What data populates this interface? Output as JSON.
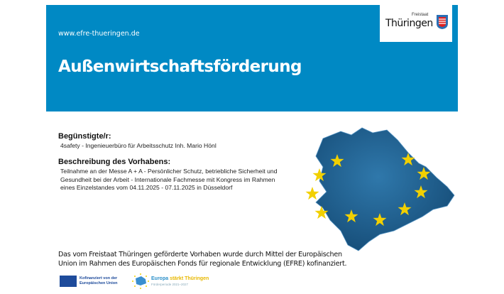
{
  "header": {
    "url": "www.efre-thueringen.de",
    "title": "Außenwirtschaftsförderung",
    "logo": {
      "line1": "Freistaat",
      "line2": "Thüringen"
    }
  },
  "beneficiary": {
    "label": "Begünstigte/r:",
    "value": "4safety - Ingenieuerbüro für Arbeitsschutz Inh. Mario Hönl"
  },
  "description": {
    "label": "Beschreibung des Vorhabens:",
    "lines": [
      "Teilnahme an der Messe A + A - Persönlicher Schutz, betriebliche Sicherheit und",
      "Gesundheit bei der Arbeit - Internationale Fachmesse mit Kongress im Rahmen",
      "eines Einzelstandes vom 04.11.2025 - 07.11.2025 in Düsseldorf"
    ]
  },
  "footer": {
    "lines": [
      "Das vom Freistaat Thüringen geförderte Vorhaben wurde durch Mittel der Europäischen",
      "Union im Rahmen des Europäischen Fonds für regionale Entwicklung (EFRE) kofinanziert."
    ],
    "eu_logo": {
      "line1": "Kofinanziert von der",
      "line2": "Europäischen Union"
    },
    "efre_logo": {
      "word1": "Europa",
      "word2": "stärkt Thüringen",
      "period": "Förderperiode 2021–2027"
    }
  },
  "colors": {
    "header": "#0089c4",
    "map": "#1f5f8f",
    "stars": "#f2d000"
  }
}
